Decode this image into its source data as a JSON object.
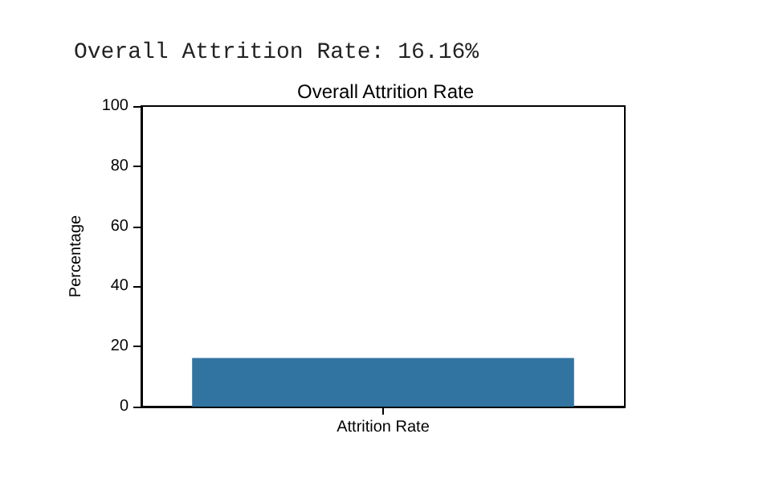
{
  "chart_data": {
    "type": "bar",
    "title": "Overall Attrition Rate",
    "ylabel": "Percentage",
    "categories": [
      "Attrition Rate"
    ],
    "values": [
      16.16
    ],
    "color": "#3274a1",
    "ylim": [
      0,
      100
    ],
    "yticks": [
      0,
      20,
      40,
      60,
      80,
      100
    ],
    "grid": false,
    "annotations": [
      "Overall Attrition Rate: 16.16%"
    ]
  }
}
